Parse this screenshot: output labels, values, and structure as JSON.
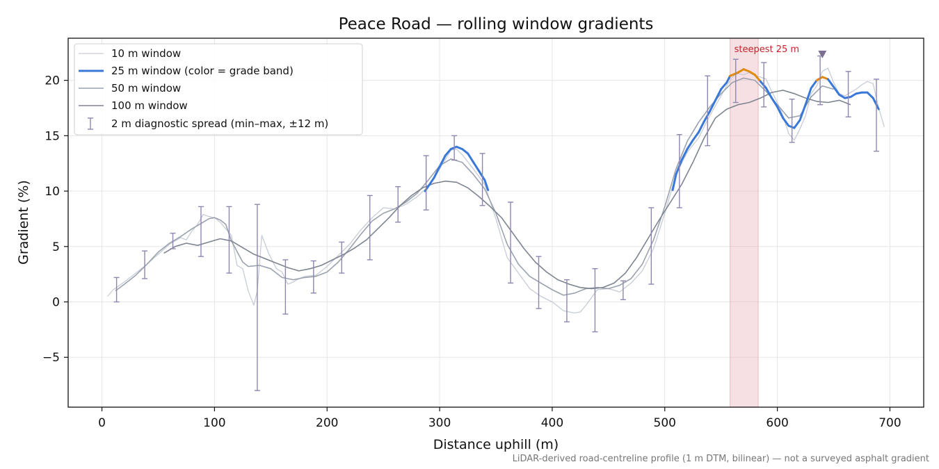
{
  "chart_data": {
    "type": "line",
    "title": "Peace Road — rolling window gradients",
    "xlabel": "Distance uphill (m)",
    "ylabel": "Gradient (%)",
    "xlim": [
      -30,
      730
    ],
    "ylim": [
      -9.5,
      23.8
    ],
    "xticks": [
      0,
      100,
      200,
      300,
      400,
      500,
      600,
      700
    ],
    "yticks": [
      -5,
      0,
      5,
      10,
      15,
      20
    ],
    "xtick_labels": [
      "0",
      "100",
      "200",
      "300",
      "400",
      "500",
      "600",
      "700"
    ],
    "ytick_labels": [
      "−5",
      "0",
      "5",
      "10",
      "15",
      "20"
    ],
    "grid": true,
    "legend_position": "upper-left",
    "footnote": "LiDAR-derived road-centreline profile (1 m DTM, bilinear) — not a surveyed asphalt gradient",
    "highlight": {
      "label": "steepest 25 m",
      "x_start": 558,
      "x_end": 583,
      "color": "#e8a7ae",
      "label_color": "#c8202a"
    },
    "peak_marker": {
      "x": 640,
      "y": 22.3,
      "color": "#7b6f94"
    },
    "colors": {
      "band_low": "#3a78d8",
      "band_high": "#e08a10",
      "spread": "#8f86b0"
    },
    "series": [
      {
        "name": "10 m window",
        "color": "#c6ccd6",
        "width": 1.3,
        "x": [
          5,
          10,
          20,
          30,
          40,
          50,
          60,
          70,
          75,
          80,
          85,
          90,
          95,
          100,
          105,
          110,
          115,
          120,
          125,
          130,
          135,
          138,
          142,
          148,
          155,
          160,
          165,
          170,
          175,
          180,
          190,
          200,
          210,
          220,
          230,
          240,
          250,
          260,
          270,
          280,
          290,
          300,
          310,
          315,
          320,
          330,
          340,
          350,
          360,
          370,
          380,
          390,
          400,
          410,
          420,
          425,
          430,
          440,
          450,
          460,
          470,
          480,
          490,
          500,
          510,
          520,
          530,
          540,
          550,
          555,
          560,
          565,
          570,
          575,
          580,
          585,
          590,
          595,
          600,
          605,
          610,
          615,
          620,
          625,
          630,
          635,
          640,
          645,
          650,
          655,
          660,
          665,
          670,
          675,
          680,
          685,
          690,
          695
        ],
        "y": [
          0.5,
          1.1,
          1.8,
          2.6,
          3.4,
          4.3,
          5.2,
          5.8,
          5.6,
          6.4,
          7.0,
          7.9,
          7.7,
          7.6,
          7.2,
          6.6,
          6.0,
          3.3,
          3.0,
          1.0,
          -0.3,
          1.0,
          6.0,
          4.4,
          3.0,
          2.7,
          1.6,
          1.8,
          2.1,
          2.3,
          2.4,
          3.2,
          4.2,
          5.2,
          6.5,
          7.6,
          8.5,
          8.4,
          8.8,
          9.5,
          10.4,
          12.0,
          13.7,
          13.8,
          13.3,
          12.0,
          10.6,
          7.5,
          4.0,
          2.6,
          1.2,
          0.5,
          0.0,
          -0.8,
          -1.0,
          -0.9,
          -0.3,
          1.1,
          1.2,
          0.9,
          1.7,
          2.8,
          4.8,
          8.0,
          11.5,
          13.5,
          14.8,
          16.8,
          18.6,
          19.5,
          20.3,
          20.6,
          20.5,
          20.7,
          20.4,
          20.3,
          20.1,
          19.0,
          18.0,
          16.8,
          15.2,
          14.6,
          15.6,
          16.8,
          18.8,
          19.5,
          20.8,
          21.1,
          19.8,
          18.8,
          18.6,
          18.9,
          19.2,
          19.6,
          19.9,
          19.7,
          17.5,
          15.8
        ]
      },
      {
        "name": "25 m window (color = grade band)",
        "color": "#3a78d8",
        "width": 3.0,
        "x": [
          287,
          295,
          300,
          305,
          310,
          315,
          320,
          325,
          330,
          335,
          340,
          343,
          507,
          510,
          515,
          520,
          525,
          530,
          535,
          540,
          545,
          550,
          555,
          558,
          565,
          570,
          575,
          580,
          585,
          590,
          595,
          600,
          605,
          610,
          615,
          620,
          625,
          630,
          635,
          640,
          645,
          650,
          655,
          660,
          665,
          670,
          675,
          680,
          685,
          690
        ],
        "y": [
          10.0,
          11.2,
          12.2,
          13.2,
          13.8,
          14.0,
          13.8,
          13.4,
          12.6,
          11.8,
          11.0,
          10.1,
          10.1,
          11.5,
          12.8,
          13.8,
          14.6,
          15.3,
          16.3,
          17.2,
          18.2,
          19.2,
          19.8,
          20.4,
          20.7,
          21.0,
          20.8,
          20.5,
          19.9,
          19.3,
          18.4,
          17.6,
          16.6,
          15.9,
          15.7,
          16.4,
          17.8,
          19.3,
          20.0,
          20.3,
          20.1,
          19.4,
          18.7,
          18.4,
          18.5,
          18.8,
          18.9,
          18.9,
          18.4,
          17.4
        ],
        "orange_x": [
          558,
          585,
          633,
          645
        ]
      },
      {
        "name": "50 m window",
        "color": "#9aa2ae",
        "width": 1.6,
        "x": [
          12,
          20,
          30,
          40,
          50,
          60,
          70,
          80,
          90,
          95,
          100,
          105,
          110,
          115,
          125,
          130,
          140,
          150,
          160,
          170,
          180,
          190,
          200,
          210,
          220,
          230,
          240,
          250,
          260,
          270,
          280,
          290,
          300,
          310,
          320,
          330,
          340,
          350,
          360,
          370,
          380,
          390,
          400,
          410,
          420,
          430,
          440,
          450,
          460,
          470,
          480,
          490,
          500,
          510,
          520,
          530,
          540,
          550,
          560,
          570,
          580,
          590,
          600,
          610,
          620,
          630,
          640,
          650
        ],
        "y": [
          1.0,
          1.6,
          2.4,
          3.4,
          4.5,
          5.3,
          5.9,
          6.6,
          7.2,
          7.5,
          7.6,
          7.4,
          7.0,
          5.5,
          3.6,
          3.2,
          3.3,
          3.0,
          2.2,
          2.0,
          2.2,
          2.3,
          2.7,
          3.6,
          4.8,
          6.1,
          7.3,
          8.0,
          8.4,
          9.0,
          9.8,
          11.0,
          12.3,
          12.9,
          12.6,
          11.5,
          10.2,
          8.0,
          5.2,
          3.4,
          2.3,
          1.7,
          1.1,
          0.6,
          0.8,
          1.2,
          1.3,
          1.2,
          1.5,
          2.1,
          3.4,
          5.6,
          8.6,
          12.0,
          14.5,
          16.2,
          17.6,
          18.8,
          19.8,
          20.2,
          20.0,
          19.0,
          17.8,
          16.6,
          16.8,
          18.5,
          19.5,
          19.2
        ]
      },
      {
        "name": "100 m window",
        "color": "#7d8490",
        "width": 1.6,
        "x": [
          55,
          65,
          75,
          85,
          95,
          105,
          115,
          125,
          135,
          145,
          155,
          165,
          175,
          185,
          195,
          205,
          215,
          225,
          235,
          245,
          255,
          265,
          275,
          285,
          295,
          305,
          315,
          325,
          335,
          345,
          355,
          365,
          375,
          385,
          395,
          405,
          415,
          425,
          435,
          445,
          455,
          465,
          475,
          485,
          495,
          505,
          515,
          525,
          535,
          545,
          555,
          565,
          575,
          585,
          595,
          605,
          615,
          625,
          635,
          645,
          655,
          665
        ],
        "y": [
          4.4,
          5.0,
          5.3,
          5.1,
          5.4,
          5.7,
          5.5,
          4.9,
          4.3,
          3.9,
          3.5,
          3.1,
          2.8,
          3.0,
          3.3,
          3.8,
          4.3,
          4.9,
          5.6,
          6.6,
          7.6,
          8.7,
          9.6,
          10.3,
          10.7,
          10.9,
          10.8,
          10.3,
          9.5,
          8.6,
          7.6,
          6.2,
          4.8,
          3.6,
          2.7,
          2.0,
          1.6,
          1.3,
          1.2,
          1.3,
          1.7,
          2.6,
          4.0,
          5.7,
          7.4,
          9.0,
          10.6,
          12.6,
          14.8,
          16.6,
          17.4,
          17.8,
          18.0,
          18.4,
          18.9,
          19.1,
          18.8,
          18.4,
          18.1,
          18.0,
          18.2,
          17.8
        ]
      }
    ],
    "spread": {
      "name": "2 m diagnostic spread (min–max, ±12 m)",
      "x": [
        13,
        38,
        63,
        88,
        113,
        138,
        163,
        188,
        213,
        238,
        263,
        288,
        313,
        338,
        363,
        388,
        413,
        438,
        463,
        488,
        513,
        538,
        563,
        588,
        613,
        638,
        663,
        688
      ],
      "lo": [
        0.0,
        2.1,
        4.8,
        4.1,
        2.6,
        -8.0,
        -1.1,
        0.8,
        2.6,
        3.8,
        7.2,
        8.3,
        12.8,
        8.7,
        1.7,
        -0.6,
        -1.8,
        -2.7,
        0.2,
        1.6,
        8.5,
        14.1,
        18.0,
        17.6,
        14.4,
        17.8,
        16.7,
        13.6
      ],
      "hi": [
        2.2,
        4.6,
        6.2,
        8.6,
        8.6,
        8.8,
        3.8,
        3.7,
        5.4,
        9.6,
        10.4,
        13.2,
        15.0,
        13.4,
        9.0,
        4.1,
        2.0,
        3.0,
        1.9,
        8.5,
        15.1,
        20.4,
        21.9,
        21.6,
        18.3,
        22.2,
        20.8,
        20.1
      ]
    }
  }
}
